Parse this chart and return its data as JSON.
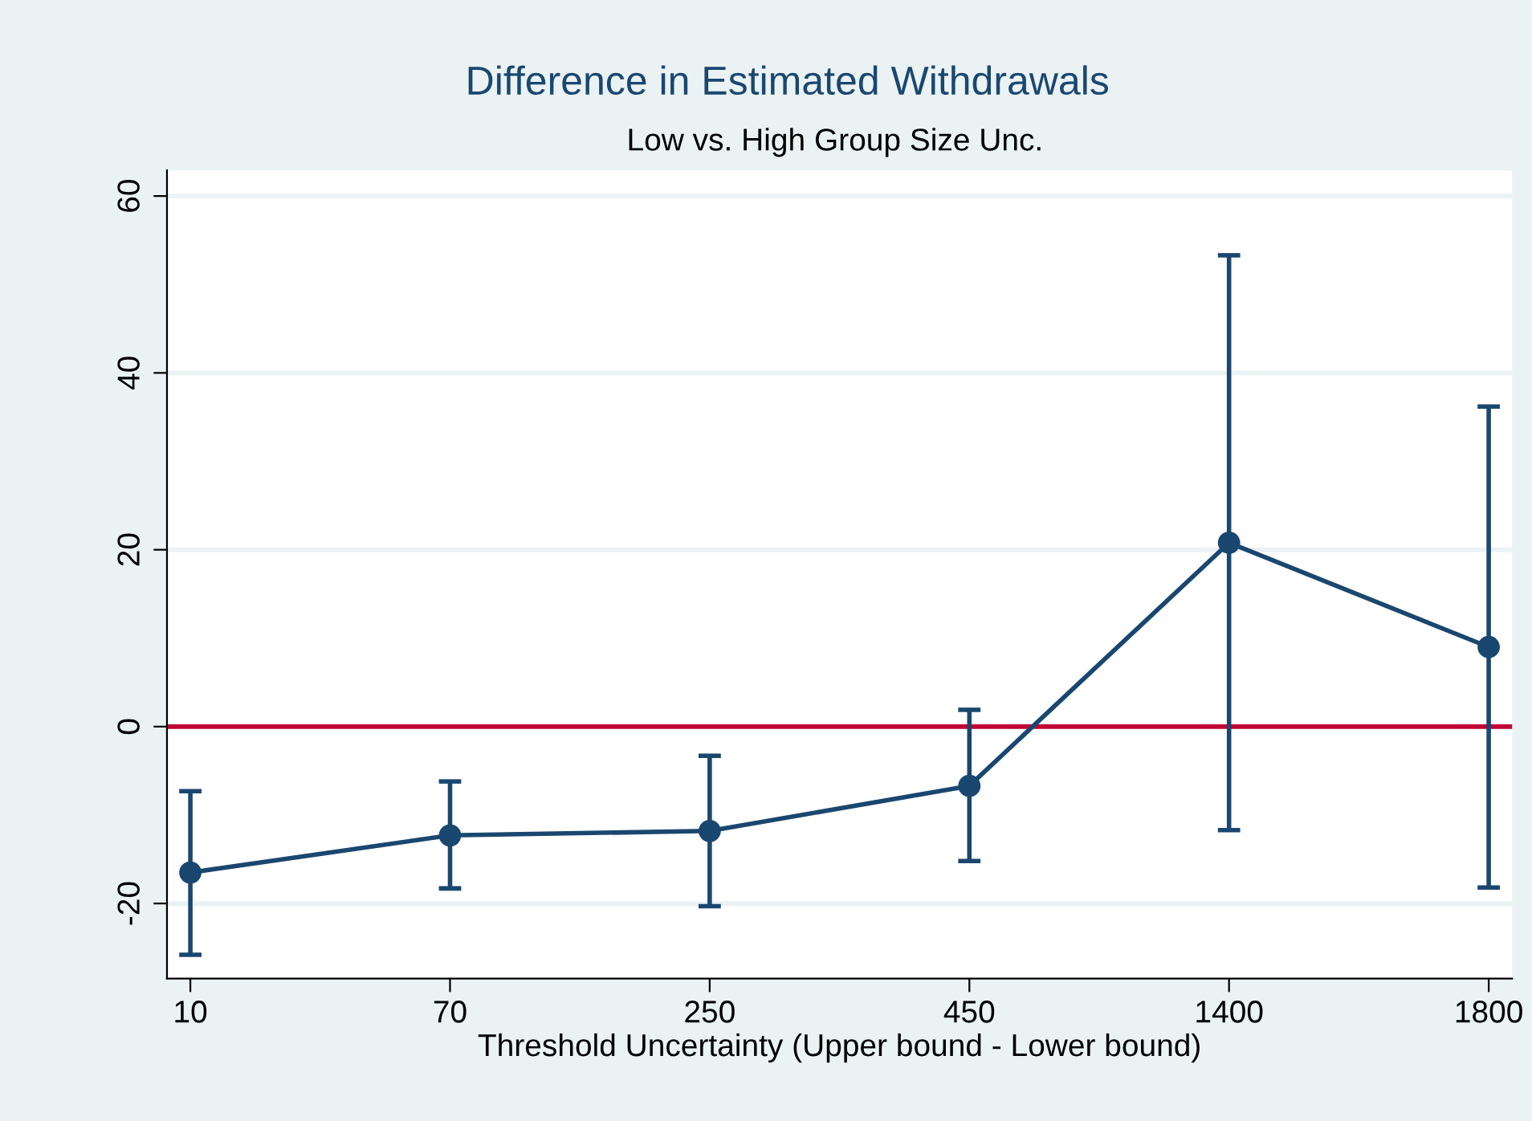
{
  "chart_data": {
    "type": "line",
    "title": "Difference in Estimated Withdrawals",
    "subtitle": "Low vs. High Group Size Unc.",
    "xlabel": "Threshold Uncertainty (Upper bound - Lower bound)",
    "categories": [
      "10",
      "70",
      "250",
      "450",
      "1400",
      "1800"
    ],
    "series": [
      {
        "color": "#1a476f",
        "values": [
          -16.5,
          -12.3,
          -11.8,
          -6.7,
          20.8,
          9.0
        ],
        "errors": [
          [
            -25.8,
            -7.3
          ],
          [
            -18.3,
            -6.2
          ],
          [
            -20.3,
            -3.3
          ],
          [
            -15.2,
            1.9
          ],
          [
            -11.7,
            53.3
          ],
          [
            -18.2,
            36.2
          ]
        ]
      }
    ],
    "ylim": [
      -28.5,
      62.9
    ],
    "yticks": [
      -20,
      0,
      20,
      40,
      60
    ],
    "ref_lines": [
      {
        "axis": "y",
        "value": 0,
        "color": "#c10534"
      }
    ],
    "grid": "y",
    "marker": "circle",
    "line_style": "solid"
  }
}
